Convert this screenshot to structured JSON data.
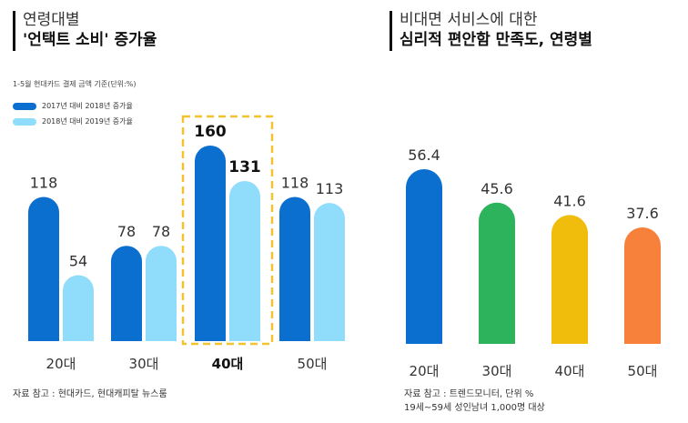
{
  "left": {
    "title_line1": "연령대별",
    "title_line2": "'언택트 소비' 증가율",
    "basis": "1-5월 현대카드 결제 금액 기준(단위:%)",
    "source": "자료 참고 : 현대카드, 현대캐피탈 뉴스룸"
  },
  "right": {
    "title_line1": "비대면 서비스에 대한",
    "title_line2": "심리적 편안함 만족도, 연령별",
    "source_line1": "자료 참고 : 트렌드모니터, 단위 %",
    "source_line2": "19세~59세 성인남녀 1,000명 대상"
  },
  "chart_data": [
    {
      "type": "bar",
      "categories": [
        "20대",
        "30대",
        "40대",
        "50대"
      ],
      "highlight_category": "40대",
      "series": [
        {
          "name": "2017년 대비 2018년 증가율",
          "color": "#0b6fd0",
          "values": [
            118,
            78,
            160,
            118
          ]
        },
        {
          "name": "2018년 대비 2019년 증가율",
          "color": "#8fdcfb",
          "values": [
            54,
            78,
            131,
            113
          ]
        }
      ],
      "ylim": [
        0,
        160
      ],
      "grid": false,
      "legend_position": "top-left"
    },
    {
      "type": "bar",
      "categories": [
        "20대",
        "30대",
        "40대",
        "50대"
      ],
      "values": [
        56.4,
        45.6,
        41.6,
        37.6
      ],
      "colors": [
        "#0b6fd0",
        "#2db35c",
        "#f0bd0d",
        "#f7813a"
      ],
      "ylim": [
        0,
        56.4
      ],
      "grid": false
    }
  ]
}
